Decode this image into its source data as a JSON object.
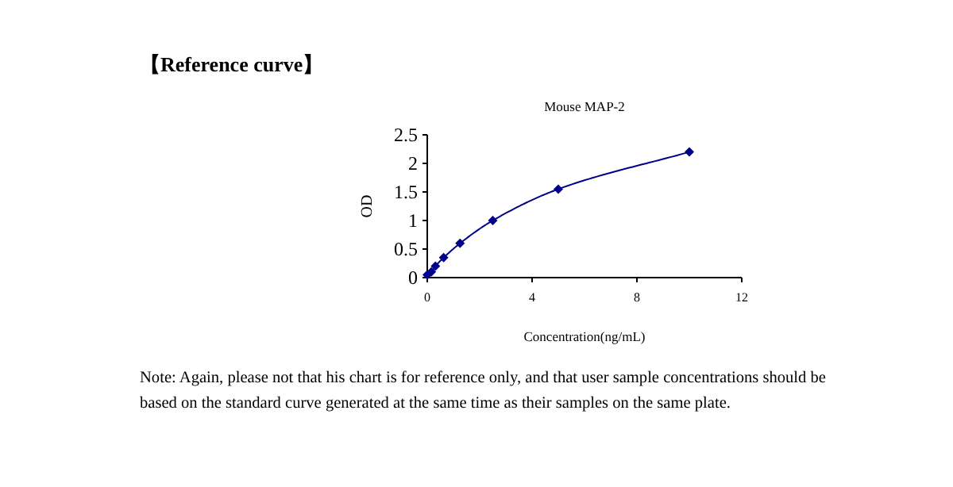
{
  "chart_data": {
    "type": "line",
    "title": "Mouse MAP-2",
    "subtitle": "【Reference curve】",
    "xlabel": "Concentration(ng/mL)",
    "ylabel": "OD",
    "x": [
      0,
      0.156,
      0.3125,
      0.625,
      1.25,
      2.5,
      5,
      10
    ],
    "series": [
      {
        "color": "#00008b",
        "values": [
          0.05,
          0.1,
          0.2,
          0.35,
          0.6,
          1.0,
          1.55,
          2.2
        ]
      }
    ],
    "xlim": [
      0,
      12
    ],
    "xticks": [
      0,
      4,
      8,
      12
    ],
    "ylim": [
      0,
      2.5
    ],
    "yticks": [
      0,
      0.5,
      1,
      1.5,
      2,
      2.5
    ],
    "marker": "diamond",
    "line_style": "solid",
    "grid": false,
    "annotations": [
      "Note: Again, please not that his chart is for reference only, and that user sample concentrations should be based on the standard curve generated at the same time as their samples on the same plate."
    ]
  }
}
